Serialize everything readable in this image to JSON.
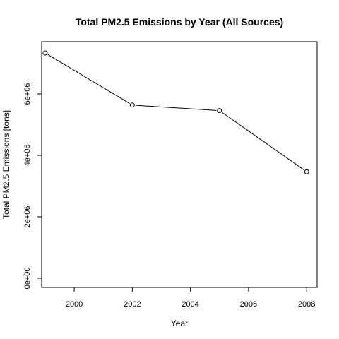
{
  "chart_data": {
    "type": "line",
    "title": "Total PM2.5 Emissions by Year (All Sources)",
    "xlabel": "Year",
    "ylabel": "Total PM2.5 Emissions [tons]",
    "x": [
      1999,
      2002,
      2005,
      2008
    ],
    "series": [
      {
        "values": [
          7332967,
          5635780,
          5454703,
          3464206
        ]
      }
    ],
    "x_ticks": [
      2000,
      2002,
      2004,
      2006,
      2008
    ],
    "x_tick_labels": [
      "2000",
      "2002",
      "2004",
      "2006",
      "2008"
    ],
    "y_ticks": [
      0,
      2000000,
      4000000,
      6000000
    ],
    "y_tick_labels": [
      "0e+00",
      "2e+06",
      "4e+06",
      "6e+06"
    ],
    "xlim": [
      1998.88,
      2008.36
    ],
    "ylim": [
      -300000,
      7700000
    ],
    "grid": false,
    "legend": "none",
    "markers": "open-circle",
    "colors": {
      "line": "#000000",
      "axis": "#000000",
      "background": "#ffffff"
    }
  }
}
